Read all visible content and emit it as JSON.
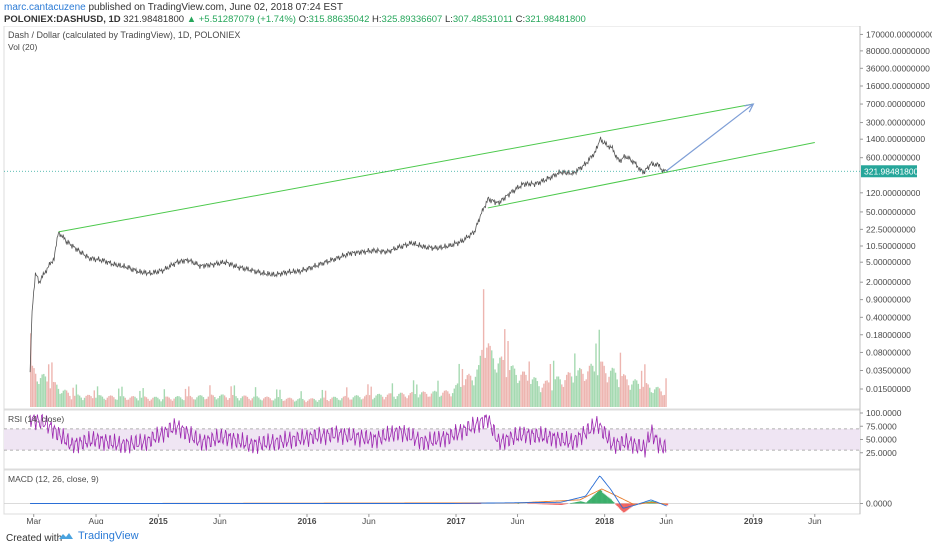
{
  "header": {
    "author": "marc.cantacuzene",
    "published": "published on TradingView.com, June 02, 2018 07:24 EST",
    "symbol": "POLONIEX:DASHUSD, 1D",
    "last": "321.98481800",
    "change": "+5.51287079 (+1.74%)",
    "open_label": "O:",
    "open": "315.88635042",
    "high_label": "H:",
    "high": "325.89336607",
    "low_label": "L:",
    "low": "307.48531011",
    "close_label": "C:",
    "close": "321.98481800"
  },
  "chart_data": [
    {
      "type": "line",
      "title": "Dash / Dollar (calculated by TradingView), 1D, POLONIEX",
      "sub_label": "Vol (20)",
      "y_scale": "log",
      "x_tick_labels": [
        "Mar",
        "Aug",
        "2015",
        "Jun",
        "2016",
        "Jun",
        "2017",
        "Jun",
        "2018",
        "Jun",
        "2019",
        "Jun"
      ],
      "y_tick_labels": [
        "170000.00000000",
        "80000.00000000",
        "36000.00000000",
        "16000.00000000",
        "7000.00000000",
        "3000.00000000",
        "1400.00000000",
        "600.00000000",
        "120.00000000",
        "50.00000000",
        "22.50000000",
        "10.50000000",
        "5.00000000",
        "2.00000000",
        "0.90000000",
        "0.40000000",
        "0.18000000",
        "0.08000000",
        "0.03500000",
        "0.01500000"
      ],
      "last_price_label": "321.98481800",
      "price_points": [
        [
          "2014-02-20",
          0.03
        ],
        [
          "2014-02-25",
          0.5
        ],
        [
          "2014-03-05",
          3.0
        ],
        [
          "2014-03-15",
          2.0
        ],
        [
          "2014-04-01",
          3.5
        ],
        [
          "2014-04-20",
          6.0
        ],
        [
          "2014-05-01",
          20.0
        ],
        [
          "2014-05-20",
          13.0
        ],
        [
          "2014-06-15",
          9.0
        ],
        [
          "2014-07-15",
          6.0
        ],
        [
          "2014-08-15",
          5.5
        ],
        [
          "2014-09-15",
          4.5
        ],
        [
          "2014-10-15",
          4.0
        ],
        [
          "2014-11-15",
          3.2
        ],
        [
          "2014-12-15",
          3.0
        ],
        [
          "2015-01-15",
          3.5
        ],
        [
          "2015-02-15",
          5.0
        ],
        [
          "2015-03-15",
          5.5
        ],
        [
          "2015-04-15",
          4.2
        ],
        [
          "2015-05-15",
          4.5
        ],
        [
          "2015-06-15",
          5.0
        ],
        [
          "2015-07-15",
          4.0
        ],
        [
          "2015-08-15",
          3.5
        ],
        [
          "2015-09-15",
          3.0
        ],
        [
          "2015-10-15",
          2.8
        ],
        [
          "2015-11-15",
          3.2
        ],
        [
          "2015-12-15",
          3.3
        ],
        [
          "2016-01-15",
          4.0
        ],
        [
          "2016-02-15",
          5.0
        ],
        [
          "2016-03-15",
          6.0
        ],
        [
          "2016-04-15",
          7.5
        ],
        [
          "2016-05-15",
          8.0
        ],
        [
          "2016-06-15",
          8.5
        ],
        [
          "2016-07-15",
          8.0
        ],
        [
          "2016-08-15",
          10.0
        ],
        [
          "2016-09-15",
          12.0
        ],
        [
          "2016-10-15",
          10.0
        ],
        [
          "2016-11-15",
          9.5
        ],
        [
          "2016-12-15",
          10.5
        ],
        [
          "2017-01-15",
          13.0
        ],
        [
          "2017-02-15",
          20.0
        ],
        [
          "2017-03-01",
          40.0
        ],
        [
          "2017-03-20",
          90.0
        ],
        [
          "2017-04-15",
          75.0
        ],
        [
          "2017-05-15",
          120.0
        ],
        [
          "2017-06-15",
          180.0
        ],
        [
          "2017-07-15",
          180.0
        ],
        [
          "2017-08-15",
          230.0
        ],
        [
          "2017-09-15",
          310.0
        ],
        [
          "2017-10-15",
          290.0
        ],
        [
          "2017-11-15",
          450.0
        ],
        [
          "2017-12-10",
          800.0
        ],
        [
          "2017-12-20",
          1400.0
        ],
        [
          "2018-01-05",
          1100.0
        ],
        [
          "2018-01-20",
          900.0
        ],
        [
          "2018-02-06",
          500.0
        ],
        [
          "2018-02-20",
          650.0
        ],
        [
          "2018-03-15",
          480.0
        ],
        [
          "2018-04-05",
          300.0
        ],
        [
          "2018-04-25",
          450.0
        ],
        [
          "2018-05-10",
          440.0
        ],
        [
          "2018-05-25",
          330.0
        ],
        [
          "2018-06-02",
          321.98
        ]
      ],
      "volume_points": [
        [
          "2014-02-20",
          0.5
        ],
        [
          "2014-06-01",
          0.15
        ],
        [
          "2015-01-01",
          0.12
        ],
        [
          "2015-06-01",
          0.15
        ],
        [
          "2016-01-01",
          0.1
        ],
        [
          "2016-06-01",
          0.15
        ],
        [
          "2016-12-15",
          0.2
        ],
        [
          "2017-02-25",
          0.5
        ],
        [
          "2017-03-10",
          1.0
        ],
        [
          "2017-03-25",
          0.7
        ],
        [
          "2017-05-15",
          0.5
        ],
        [
          "2017-08-01",
          0.3
        ],
        [
          "2017-12-20",
          0.55
        ],
        [
          "2018-03-01",
          0.35
        ],
        [
          "2018-06-02",
          0.2
        ]
      ]
    },
    {
      "type": "line",
      "title": "RSI (14, close)",
      "y_tick_labels": [
        "100.0000",
        "75.0000",
        "50.0000",
        "25.0000"
      ],
      "levels": [
        70,
        30
      ],
      "y_range": [
        0,
        100
      ],
      "values": [
        [
          "2014-02-20",
          90
        ],
        [
          "2014-04-01",
          80
        ],
        [
          "2014-06-01",
          40
        ],
        [
          "2014-08-01",
          50
        ],
        [
          "2014-10-01",
          40
        ],
        [
          "2014-12-01",
          45
        ],
        [
          "2015-02-15",
          75
        ],
        [
          "2015-04-15",
          45
        ],
        [
          "2015-06-15",
          55
        ],
        [
          "2015-08-15",
          40
        ],
        [
          "2015-10-15",
          45
        ],
        [
          "2016-01-15",
          55
        ],
        [
          "2016-03-15",
          60
        ],
        [
          "2016-06-15",
          50
        ],
        [
          "2016-08-15",
          65
        ],
        [
          "2016-10-15",
          45
        ],
        [
          "2016-12-15",
          55
        ],
        [
          "2017-02-25",
          80
        ],
        [
          "2017-03-20",
          90
        ],
        [
          "2017-04-15",
          45
        ],
        [
          "2017-06-15",
          60
        ],
        [
          "2017-08-15",
          55
        ],
        [
          "2017-10-15",
          45
        ],
        [
          "2017-12-15",
          80
        ],
        [
          "2018-01-20",
          40
        ],
        [
          "2018-03-01",
          45
        ],
        [
          "2018-04-10",
          32
        ],
        [
          "2018-04-25",
          65
        ],
        [
          "2018-05-15",
          40
        ],
        [
          "2018-06-02",
          32
        ]
      ]
    },
    {
      "type": "line",
      "title": "MACD (12, 26, close, 9)",
      "y_tick_labels": [
        "0.0000"
      ],
      "values": [
        [
          "2014-02-20",
          0
        ],
        [
          "2016-12-15",
          0
        ],
        [
          "2017-04-15",
          5
        ],
        [
          "2017-09-15",
          10
        ],
        [
          "2017-11-15",
          60
        ],
        [
          "2017-12-20",
          230
        ],
        [
          "2018-01-15",
          120
        ],
        [
          "2018-02-15",
          -40
        ],
        [
          "2018-03-15",
          -15
        ],
        [
          "2018-04-25",
          30
        ],
        [
          "2018-06-02",
          -20
        ]
      ],
      "signal": [
        [
          "2014-02-20",
          0
        ],
        [
          "2017-06-01",
          5
        ],
        [
          "2017-11-01",
          30
        ],
        [
          "2017-12-25",
          120
        ],
        [
          "2018-02-01",
          60
        ],
        [
          "2018-03-15",
          -10
        ],
        [
          "2018-04-25",
          10
        ],
        [
          "2018-06-02",
          -5
        ]
      ]
    }
  ],
  "drawings": {
    "channel_upper": [
      [
        "2014-05-01",
        20.0
      ],
      [
        "2019-01-01",
        7000.0
      ]
    ],
    "channel_lower": [
      [
        "2017-03-20",
        60.0
      ],
      [
        "2019-06-01",
        1200.0
      ]
    ],
    "projection_arrow": [
      [
        "2018-06-02",
        330.0
      ],
      [
        "2019-01-01",
        7000.0
      ]
    ]
  },
  "colors": {
    "price": "#555555",
    "channel": "#4cc94c",
    "arrow": "#7e9ed6",
    "rsi": "#9c27b0",
    "rsi_band": "#efe5f3",
    "macd": "#2b6fd6",
    "macd_signal": "#e87d2c",
    "hist_pos": "#26a65b",
    "hist_neg": "#ef5350",
    "last_tag": "#26a69a",
    "volume": "#b5a9a0",
    "axis_text": "#4a4a4a"
  },
  "footer": {
    "created": "Created with",
    "brand": "TradingView"
  }
}
